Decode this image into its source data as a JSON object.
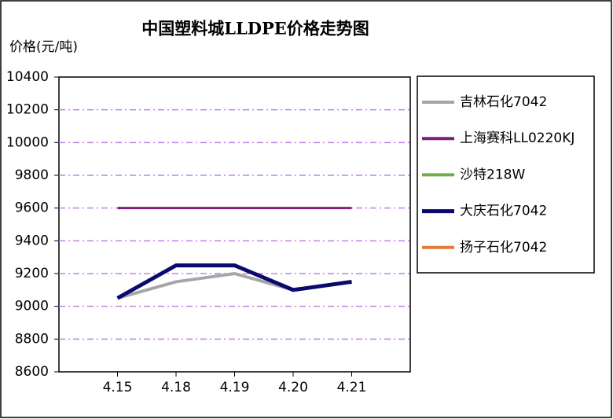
{
  "chart_data": {
    "type": "line",
    "title": "中国塑料城LLDPE价格走势图",
    "y_label": "价格(元/吨)",
    "categories": [
      "4.15",
      "4.18",
      "4.19",
      "4.20",
      "4.21"
    ],
    "series": [
      {
        "name": "吉林石化7042",
        "color": "#a6a6a6",
        "values": [
          9050,
          9150,
          9200,
          9100,
          9150
        ]
      },
      {
        "name": "上海赛科LL0220KJ",
        "color": "#7f1f7f",
        "values": [
          9600,
          9600,
          9600,
          9600,
          9600
        ]
      },
      {
        "name": "沙特218W",
        "color": "#70ad47",
        "values": [
          null,
          null,
          null,
          null,
          null
        ]
      },
      {
        "name": "大庆石化7042",
        "color": "#0a0a6e",
        "values": [
          9050,
          9250,
          9250,
          9100,
          9150
        ]
      },
      {
        "name": "扬子石化7042",
        "color": "#e07b39",
        "values": [
          null,
          null,
          null,
          null,
          null
        ]
      }
    ],
    "ylim": [
      8600,
      10400
    ],
    "yticks": [
      8600,
      8800,
      9000,
      9200,
      9400,
      9600,
      9800,
      10000,
      10200,
      10400
    ],
    "grid": true,
    "legend": "right"
  }
}
